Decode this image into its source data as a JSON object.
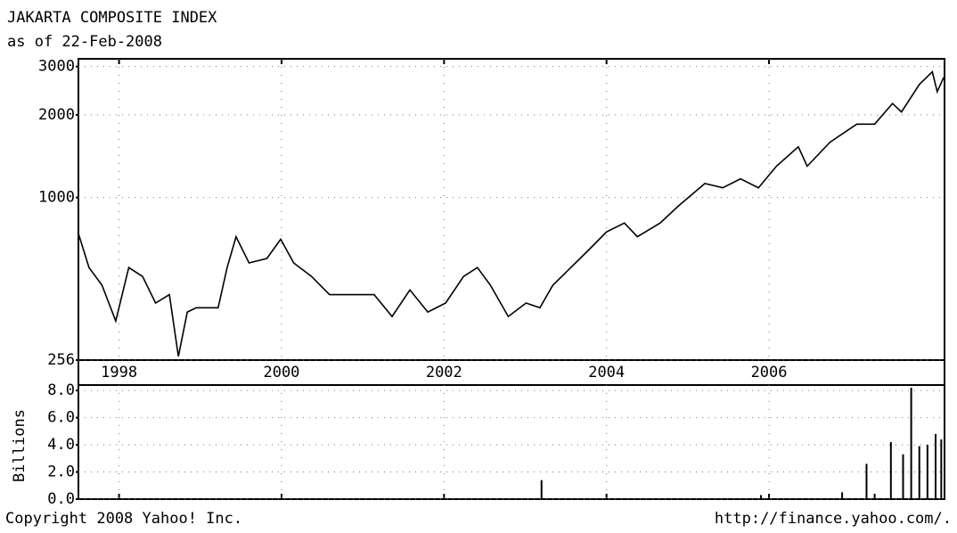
{
  "chart_data": [
    {
      "type": "line",
      "title": "JAKARTA COMPOSITE INDEX",
      "subtitle": "as of 22-Feb-2008",
      "x": [
        1997.5,
        1997.63,
        1997.79,
        1997.96,
        1998.12,
        1998.29,
        1998.45,
        1998.62,
        1998.73,
        1998.84,
        1998.95,
        1999.22,
        1999.33,
        1999.44,
        1999.6,
        1999.82,
        1999.99,
        2000.15,
        2000.37,
        2000.59,
        2000.92,
        2001.14,
        2001.36,
        2001.58,
        2001.8,
        2002.02,
        2002.24,
        2002.41,
        2002.57,
        2002.79,
        2003.01,
        2003.18,
        2003.34,
        2003.56,
        2003.78,
        2004.0,
        2004.22,
        2004.38,
        2004.66,
        2004.88,
        2005.21,
        2005.43,
        2005.65,
        2005.87,
        2006.09,
        2006.36,
        2006.47,
        2006.75,
        2007.08,
        2007.3,
        2007.52,
        2007.63,
        2007.85,
        2008.01,
        2008.07,
        2008.15
      ],
      "values": [
        740,
        556,
        480,
        355,
        556,
        516,
        413,
        443,
        264,
        383,
        397,
        397,
        556,
        720,
        578,
        600,
        705,
        578,
        516,
        443,
        443,
        443,
        369,
        461,
        383,
        413,
        516,
        556,
        480,
        369,
        413,
        397,
        480,
        556,
        644,
        750,
        808,
        720,
        808,
        929,
        1125,
        1085,
        1170,
        1085,
        1300,
        1530,
        1300,
        1590,
        1850,
        1850,
        2200,
        2050,
        2580,
        2870,
        2430,
        2740
      ],
      "color": "#000000",
      "xlim": [
        1997.5,
        2008.16
      ],
      "xticks": [
        1998,
        2000,
        2002,
        2004,
        2006
      ],
      "ylim": [
        256,
        3200
      ],
      "yticks": [
        256,
        1000,
        2000,
        3000
      ],
      "log_scale": true,
      "grid": true
    },
    {
      "type": "bar",
      "ylabel": "Billions",
      "x": [
        2003.2,
        2005.9,
        2006.9,
        2007.2,
        2007.3,
        2007.5,
        2007.65,
        2007.75,
        2007.85,
        2007.95,
        2008.05,
        2008.12
      ],
      "values": [
        1.4,
        0.3,
        0.5,
        2.6,
        0.4,
        4.2,
        3.3,
        8.2,
        3.9,
        4.0,
        4.8,
        4.4
      ],
      "color": "#000000",
      "xlim": [
        1997.5,
        2008.16
      ],
      "xticks": [
        1998,
        2000,
        2002,
        2004,
        2006
      ],
      "ylim": [
        0,
        8.4
      ],
      "yticks": [
        {
          "value": 0,
          "label": "0.0"
        },
        {
          "value": 2,
          "label": "2.0"
        },
        {
          "value": 4,
          "label": "4.0"
        },
        {
          "value": 6,
          "label": "6.0"
        },
        {
          "value": 8,
          "label": "8.0"
        }
      ],
      "grid": true
    }
  ],
  "footer": {
    "left": "Copyright 2008 Yahoo! Inc.",
    "right": "http://finance.yahoo.com/."
  }
}
